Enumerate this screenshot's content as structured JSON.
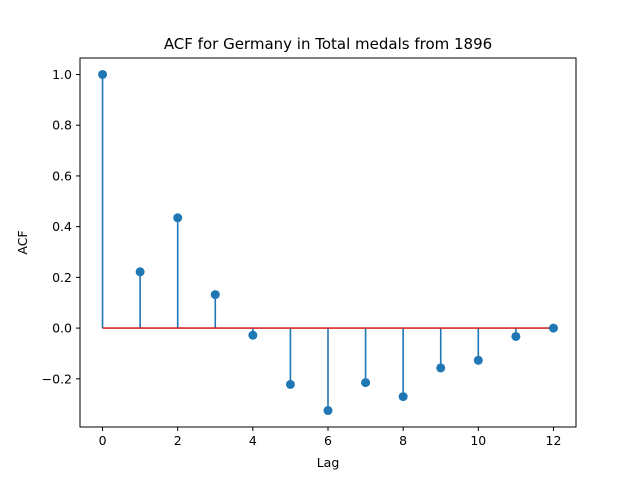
{
  "chart_data": {
    "type": "stem",
    "title": "ACF for Germany in Total medals from 1896",
    "xlabel": "Lag",
    "ylabel": "ACF",
    "xlim": [
      -0.6,
      12.6
    ],
    "ylim": [
      -0.39,
      1.065
    ],
    "xticks": [
      0,
      2,
      4,
      6,
      8,
      10,
      12
    ],
    "yticks": [
      -0.2,
      0.0,
      0.2,
      0.4,
      0.6,
      0.8,
      1.0
    ],
    "ytick_labels": [
      "−0.2",
      "0.0",
      "0.2",
      "0.4",
      "0.6",
      "0.8",
      "1.0"
    ],
    "baseline": 0.0,
    "grid": false,
    "series": [
      {
        "x": [
          0,
          1,
          2,
          3,
          4,
          5,
          6,
          7,
          8,
          9,
          10,
          11,
          12
        ],
        "values": [
          1.0,
          0.222,
          0.435,
          0.132,
          -0.028,
          -0.222,
          -0.325,
          -0.215,
          -0.27,
          -0.157,
          -0.127,
          -0.033,
          0.0
        ]
      }
    ],
    "colors": {
      "stem": "#1f77b4",
      "marker": "#1f77b4",
      "baseline": "#d62728",
      "axes": "#000000"
    }
  }
}
